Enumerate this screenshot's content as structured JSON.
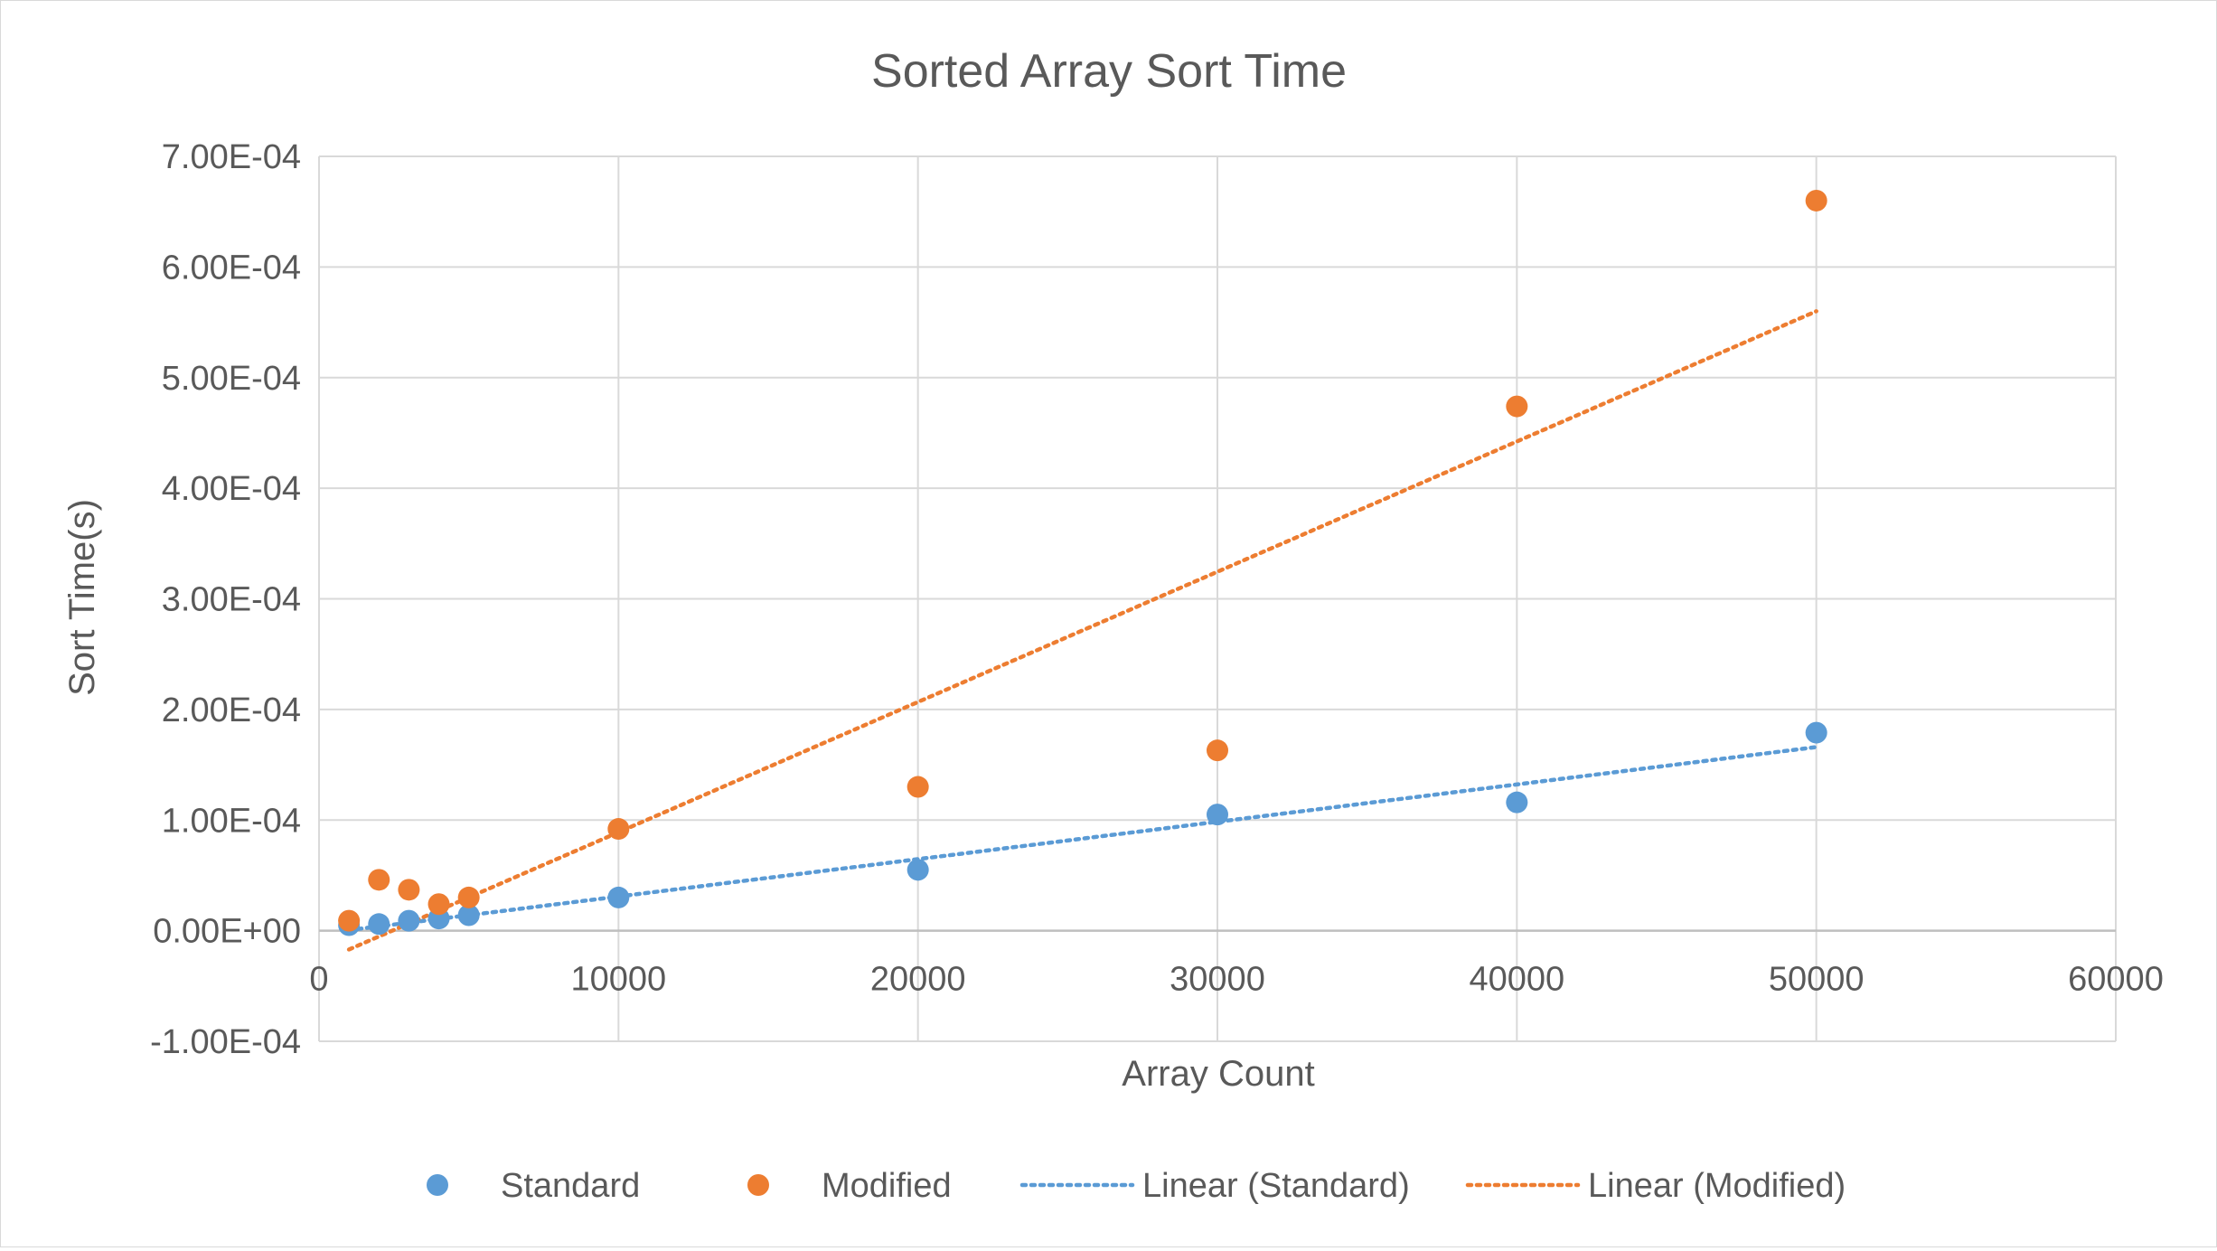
{
  "chart_data": {
    "type": "scatter",
    "title": "Sorted Array Sort Time",
    "xlabel": "Array Count",
    "ylabel": "Sort Time(s)",
    "xlim": [
      0,
      60000
    ],
    "ylim": [
      -0.0001,
      0.0007
    ],
    "xticks": [
      0,
      10000,
      20000,
      30000,
      40000,
      50000,
      60000
    ],
    "xtick_labels": [
      "0",
      "10000",
      "20000",
      "30000",
      "40000",
      "50000",
      "60000"
    ],
    "yticks": [
      -0.0001,
      0,
      0.0001,
      0.0002,
      0.0003,
      0.0004,
      0.0005,
      0.0006,
      0.0007
    ],
    "ytick_labels": [
      "-1.00E-04",
      "0.00E+00",
      "1.00E-04",
      "2.00E-04",
      "3.00E-04",
      "4.00E-04",
      "5.00E-04",
      "6.00E-04",
      "7.00E-04"
    ],
    "grid": true,
    "legend_position": "bottom",
    "series": [
      {
        "name": "Standard",
        "color": "#5b9bd5",
        "x": [
          1000,
          2000,
          3000,
          4000,
          5000,
          10000,
          20000,
          30000,
          40000,
          50000
        ],
        "y": [
          5e-06,
          6e-06,
          9e-06,
          1.1e-05,
          1.4e-05,
          3e-05,
          5.5e-05,
          0.000105,
          0.000116,
          0.000179
        ]
      },
      {
        "name": "Modified",
        "color": "#ed7d31",
        "x": [
          1000,
          2000,
          3000,
          4000,
          5000,
          10000,
          20000,
          30000,
          40000,
          50000
        ],
        "y": [
          9e-06,
          4.6e-05,
          3.7e-05,
          2.4e-05,
          3e-05,
          9.2e-05,
          0.00013,
          0.000163,
          0.000474,
          0.00066
        ]
      }
    ],
    "trendlines": [
      {
        "name": "Linear (Standard)",
        "color": "#5b9bd5",
        "x": [
          1000,
          50000
        ],
        "y": [
          5e-07,
          0.000166
        ]
      },
      {
        "name": "Linear (Modified)",
        "color": "#ed7d31",
        "x": [
          1000,
          50000
        ],
        "y": [
          -1.7e-05,
          0.00056
        ]
      }
    ]
  }
}
